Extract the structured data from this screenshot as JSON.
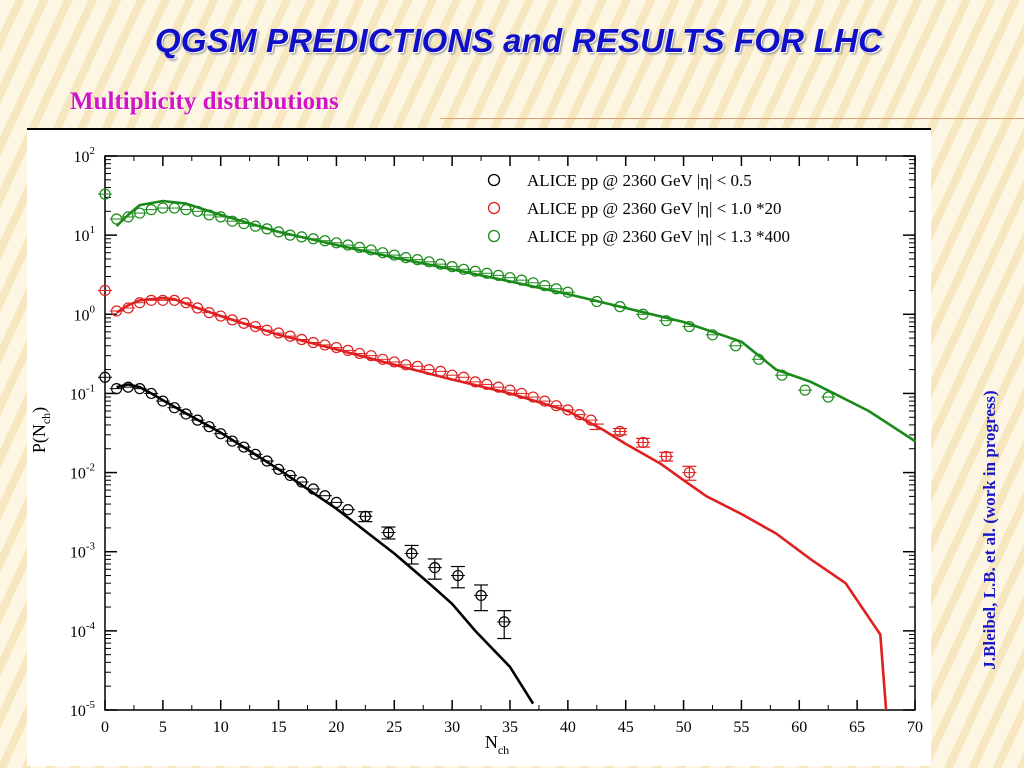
{
  "slide": {
    "title": "QGSM PREDICTIONS and RESULTS FOR LHC",
    "subtitle": "Multiplicity distributions",
    "side_note": "J.Bleibel, L.B. et al. (work in progress)"
  },
  "chart_data": {
    "type": "scatter",
    "xlabel": "N",
    "xlabel_sub": "ch",
    "ylabel": "P(N",
    "ylabel_sub": "ch",
    "ylabel_close": ")",
    "xlim": [
      0,
      70
    ],
    "ylim": [
      1e-05,
      100
    ],
    "yscale": "log",
    "x_ticks": [
      "0",
      "5",
      "10",
      "15",
      "20",
      "25",
      "30",
      "35",
      "40",
      "45",
      "50",
      "55",
      "60",
      "65",
      "70"
    ],
    "y_ticks": [
      {
        "base": "10",
        "exp": "-5"
      },
      {
        "base": "10",
        "exp": "-4"
      },
      {
        "base": "10",
        "exp": "-3"
      },
      {
        "base": "10",
        "exp": "-2"
      },
      {
        "base": "10",
        "exp": "-1"
      },
      {
        "base": "10",
        "exp": "0"
      },
      {
        "base": "10",
        "exp": "1"
      },
      {
        "base": "10",
        "exp": "2"
      }
    ],
    "legend_position": "top-right",
    "series": [
      {
        "name": "ALICE pp @ 2360 GeV |η| < 0.5",
        "color": "#000000",
        "points": [
          [
            0,
            0.16
          ],
          [
            1,
            0.115
          ],
          [
            2,
            0.12
          ],
          [
            3,
            0.115
          ],
          [
            4,
            0.1
          ],
          [
            5,
            0.08
          ],
          [
            6,
            0.066
          ],
          [
            7,
            0.055
          ],
          [
            8,
            0.046
          ],
          [
            9,
            0.038
          ],
          [
            10,
            0.031
          ],
          [
            11,
            0.025
          ],
          [
            12,
            0.021
          ],
          [
            13,
            0.017
          ],
          [
            14,
            0.014
          ],
          [
            15,
            0.011
          ],
          [
            16,
            0.0092
          ],
          [
            17,
            0.0076
          ],
          [
            18,
            0.0062
          ],
          [
            19,
            0.0051
          ],
          [
            20,
            0.0042
          ],
          [
            21,
            0.0034
          ],
          [
            22.5,
            0.0028
          ],
          [
            24.5,
            0.00175
          ],
          [
            26.5,
            0.00095
          ],
          [
            28.5,
            0.00063
          ],
          [
            30.5,
            0.0005
          ],
          [
            32.5,
            0.00028
          ],
          [
            34.5,
            0.00013
          ]
        ],
        "errors": [
          [
            22.5,
            0.0028,
            0.0004
          ],
          [
            24.5,
            0.00175,
            0.0003
          ],
          [
            26.5,
            0.00095,
            0.00025
          ],
          [
            28.5,
            0.00063,
            0.00018
          ],
          [
            30.5,
            0.0005,
            0.00015
          ],
          [
            32.5,
            0.00028,
            0.0001
          ],
          [
            34.5,
            0.00013,
            5e-05
          ]
        ],
        "curve": [
          [
            1,
            0.12
          ],
          [
            2,
            0.13
          ],
          [
            3,
            0.12
          ],
          [
            4,
            0.1
          ],
          [
            5,
            0.082
          ],
          [
            7,
            0.056
          ],
          [
            10,
            0.032
          ],
          [
            15,
            0.011
          ],
          [
            20,
            0.0035
          ],
          [
            25,
            0.00095
          ],
          [
            28,
            0.0004
          ],
          [
            30,
            0.00022
          ],
          [
            32,
            0.0001
          ],
          [
            35,
            3.5e-05
          ],
          [
            37,
            1.2e-05
          ]
        ]
      },
      {
        "name": "ALICE pp @ 2360 GeV |η| < 1.0 *20",
        "color": "#e02020",
        "points": [
          [
            0,
            2.0
          ],
          [
            1,
            1.1
          ],
          [
            2,
            1.2
          ],
          [
            3,
            1.4
          ],
          [
            4,
            1.5
          ],
          [
            5,
            1.5
          ],
          [
            6,
            1.5
          ],
          [
            7,
            1.4
          ],
          [
            8,
            1.2
          ],
          [
            9,
            1.05
          ],
          [
            10,
            0.95
          ],
          [
            11,
            0.85
          ],
          [
            12,
            0.77
          ],
          [
            13,
            0.7
          ],
          [
            14,
            0.63
          ],
          [
            15,
            0.58
          ],
          [
            16,
            0.53
          ],
          [
            17,
            0.48
          ],
          [
            18,
            0.44
          ],
          [
            19,
            0.41
          ],
          [
            20,
            0.38
          ],
          [
            21,
            0.35
          ],
          [
            22,
            0.32
          ],
          [
            23,
            0.3
          ],
          [
            24,
            0.27
          ],
          [
            25,
            0.25
          ],
          [
            26,
            0.23
          ],
          [
            27,
            0.22
          ],
          [
            28,
            0.2
          ],
          [
            29,
            0.19
          ],
          [
            30,
            0.17
          ],
          [
            31,
            0.16
          ],
          [
            32,
            0.14
          ],
          [
            33,
            0.13
          ],
          [
            34,
            0.12
          ],
          [
            35,
            0.11
          ],
          [
            36,
            0.1
          ],
          [
            37,
            0.09
          ],
          [
            38,
            0.08
          ],
          [
            39,
            0.07
          ],
          [
            40,
            0.062
          ],
          [
            41,
            0.054
          ],
          [
            42,
            0.046
          ],
          [
            44.5,
            0.033
          ],
          [
            46.5,
            0.024
          ],
          [
            48.5,
            0.016
          ],
          [
            50.5,
            0.01
          ]
        ],
        "errors": [
          [
            42.5,
            0.038,
            0.003
          ],
          [
            44.5,
            0.033,
            0.003
          ],
          [
            46.5,
            0.024,
            0.003
          ],
          [
            48.5,
            0.016,
            0.002
          ],
          [
            50.5,
            0.01,
            0.002
          ]
        ],
        "curve": [
          [
            1,
            1.05
          ],
          [
            2,
            1.3
          ],
          [
            3,
            1.5
          ],
          [
            5,
            1.6
          ],
          [
            6,
            1.55
          ],
          [
            8,
            1.2
          ],
          [
            10,
            0.95
          ],
          [
            15,
            0.55
          ],
          [
            20,
            0.36
          ],
          [
            25,
            0.23
          ],
          [
            30,
            0.15
          ],
          [
            35,
            0.1
          ],
          [
            40,
            0.06
          ],
          [
            43,
            0.035
          ],
          [
            45,
            0.023
          ],
          [
            48,
            0.013
          ],
          [
            50,
            0.008
          ],
          [
            52,
            0.005
          ],
          [
            55,
            0.003
          ],
          [
            58,
            0.0017
          ],
          [
            61,
            0.0008
          ],
          [
            64,
            0.0004
          ],
          [
            67,
            9e-05
          ],
          [
            67.5,
            3e-06
          ]
        ]
      },
      {
        "name": "ALICE pp @ 2360 GeV |η| < 1.3 *400",
        "color": "#1a8a1a",
        "points": [
          [
            0,
            33
          ],
          [
            1,
            16
          ],
          [
            2,
            17
          ],
          [
            3,
            19
          ],
          [
            4,
            21
          ],
          [
            5,
            22
          ],
          [
            6,
            22
          ],
          [
            7,
            21
          ],
          [
            8,
            20
          ],
          [
            9,
            18
          ],
          [
            10,
            17
          ],
          [
            11,
            15
          ],
          [
            12,
            14
          ],
          [
            13,
            13
          ],
          [
            14,
            12
          ],
          [
            15,
            11
          ],
          [
            16,
            10
          ],
          [
            17,
            9.5
          ],
          [
            18,
            9
          ],
          [
            19,
            8.5
          ],
          [
            20,
            8
          ],
          [
            21,
            7.5
          ],
          [
            22,
            7
          ],
          [
            23,
            6.5
          ],
          [
            24,
            6
          ],
          [
            25,
            5.6
          ],
          [
            26,
            5.2
          ],
          [
            27,
            4.9
          ],
          [
            28,
            4.6
          ],
          [
            29,
            4.3
          ],
          [
            30,
            4.0
          ],
          [
            31,
            3.7
          ],
          [
            32,
            3.5
          ],
          [
            33,
            3.3
          ],
          [
            34,
            3.1
          ],
          [
            35,
            2.9
          ],
          [
            36,
            2.7
          ],
          [
            37,
            2.5
          ],
          [
            38,
            2.3
          ],
          [
            39,
            2.1
          ],
          [
            40,
            1.9
          ],
          [
            42.5,
            1.45
          ],
          [
            44.5,
            1.25
          ],
          [
            46.5,
            1.0
          ],
          [
            48.5,
            0.83
          ],
          [
            50.5,
            0.7
          ],
          [
            52.5,
            0.55
          ],
          [
            54.5,
            0.4
          ],
          [
            56.5,
            0.27
          ],
          [
            58.5,
            0.17
          ],
          [
            60.5,
            0.11
          ],
          [
            62.5,
            0.09
          ]
        ],
        "errors": [],
        "curve": [
          [
            1,
            13
          ],
          [
            2,
            18
          ],
          [
            3,
            24
          ],
          [
            5,
            27
          ],
          [
            7,
            25
          ],
          [
            10,
            18
          ],
          [
            15,
            11
          ],
          [
            20,
            7.5
          ],
          [
            25,
            5.2
          ],
          [
            30,
            3.7
          ],
          [
            35,
            2.6
          ],
          [
            40,
            1.8
          ],
          [
            45,
            1.2
          ],
          [
            50,
            0.8
          ],
          [
            55,
            0.45
          ],
          [
            58,
            0.2
          ],
          [
            61,
            0.14
          ],
          [
            63,
            0.1
          ],
          [
            66,
            0.06
          ],
          [
            70,
            0.025
          ]
        ]
      }
    ]
  }
}
